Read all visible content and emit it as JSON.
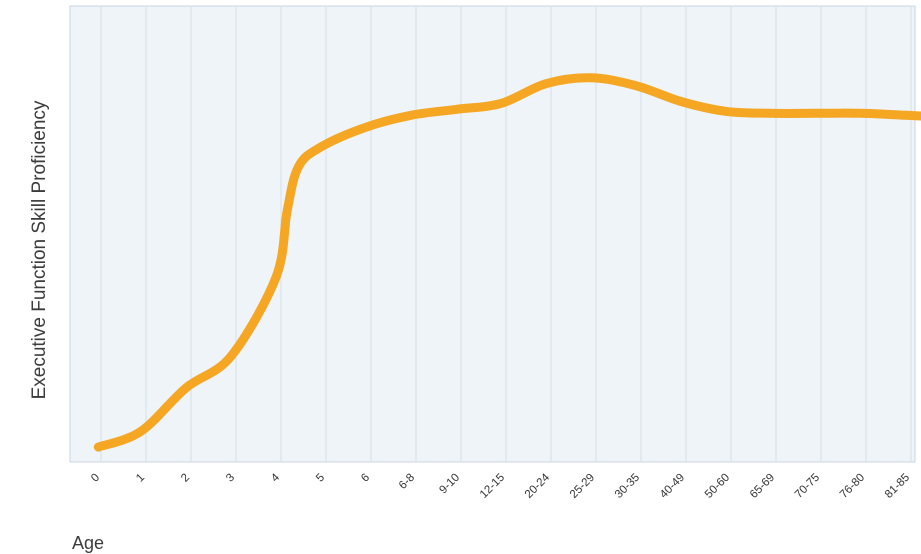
{
  "chart_data": {
    "type": "line",
    "xlabel": "Age",
    "ylabel": "Executive Function Skill Proficiency",
    "categories": [
      "0",
      "1",
      "2",
      "3",
      "4",
      "5",
      "6",
      "6-8",
      "9-10",
      "12-15",
      "20-24",
      "25-29",
      "30-35",
      "40-49",
      "50-60",
      "65-69",
      "70-75",
      "76-80",
      "81-85"
    ],
    "x": [
      0.05,
      1,
      2,
      3,
      4,
      4.25,
      4.5,
      5,
      6,
      7,
      8,
      9,
      10,
      11,
      12,
      13,
      14,
      15,
      16,
      17,
      18,
      18.95
    ],
    "values": [
      0.02,
      0.06,
      0.17,
      0.25,
      0.45,
      0.62,
      0.73,
      0.78,
      0.83,
      0.86,
      0.875,
      0.89,
      0.94,
      0.955,
      0.935,
      0.895,
      0.87,
      0.865,
      0.865,
      0.865,
      0.86,
      0.855
    ],
    "ylim": [
      0,
      1
    ],
    "grid": "vertical",
    "colors": {
      "line": "#f5a623",
      "plot_background": "#eef4f8",
      "gridline": "#d4dfe8",
      "border": "#c9d6e0"
    }
  }
}
